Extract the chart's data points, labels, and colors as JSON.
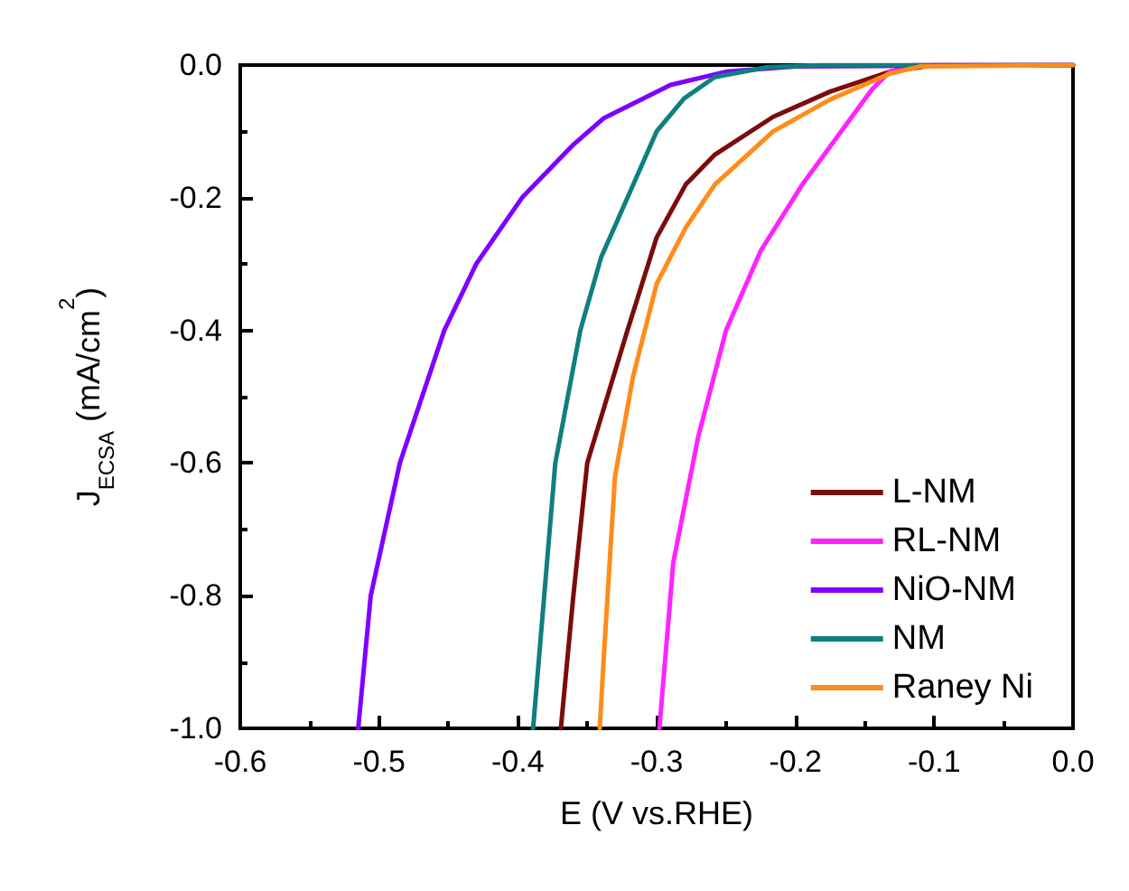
{
  "chart_data": {
    "type": "line",
    "xlabel": "E (V vs.RHE)",
    "ylabel": "J$_{ECSA}$ (mA/cm$^{2}$)",
    "xlim": [
      -0.6,
      0
    ],
    "ylim": [
      -1,
      0
    ],
    "xticks": [
      -0.6,
      -0.5,
      -0.4,
      -0.3,
      -0.2,
      -0.1,
      {
        "value": 0,
        "label": "0.0"
      }
    ],
    "yticks": [
      {
        "value": -1,
        "label": "-1.0"
      },
      -0.8,
      -0.6,
      -0.4,
      -0.2,
      {
        "value": 0,
        "label": "0.0"
      }
    ],
    "grid": false,
    "legend": "bottom right",
    "marker": "none",
    "line_style": "solid",
    "series": [
      {
        "name": "L-NM",
        "color": "#7b0c0c",
        "x": [
          -0.369,
          -0.36,
          -0.35,
          -0.321,
          -0.3,
          -0.279,
          -0.258,
          -0.216,
          -0.175,
          -0.132,
          -0.1,
          0
        ],
        "values": [
          -1,
          -0.8,
          -0.6,
          -0.4,
          -0.26,
          -0.18,
          -0.135,
          -0.078,
          -0.04,
          -0.01,
          0,
          0
        ]
      },
      {
        "name": "RL-NM",
        "color": "#ff22ff",
        "x": [
          -0.298,
          -0.288,
          -0.27,
          -0.25,
          -0.225,
          -0.195,
          -0.166,
          -0.145,
          -0.132,
          -0.115,
          0
        ],
        "values": [
          -1,
          -0.75,
          -0.56,
          -0.4,
          -0.28,
          -0.18,
          -0.097,
          -0.037,
          -0.01,
          0,
          0
        ]
      },
      {
        "name": "NiO-NM",
        "color": "#7f00ff",
        "x": [
          -0.515,
          -0.506,
          -0.485,
          -0.453,
          -0.43,
          -0.397,
          -0.36,
          -0.338,
          -0.29,
          -0.25,
          -0.2,
          0
        ],
        "values": [
          -1,
          -0.8,
          -0.6,
          -0.4,
          -0.3,
          -0.2,
          -0.12,
          -0.08,
          -0.03,
          -0.01,
          -0.002,
          0
        ]
      },
      {
        "name": "NM",
        "color": "#0f7f7f",
        "x": [
          -0.389,
          -0.381,
          -0.373,
          -0.355,
          -0.34,
          -0.321,
          -0.3,
          -0.28,
          -0.258,
          -0.22,
          -0.18,
          0
        ],
        "values": [
          -1,
          -0.8,
          -0.6,
          -0.4,
          -0.29,
          -0.2,
          -0.1,
          -0.05,
          -0.018,
          -0.003,
          0,
          0
        ]
      },
      {
        "name": "Raney Ni",
        "color": "#ff8c1a",
        "x": [
          -0.341,
          -0.338,
          -0.33,
          -0.317,
          -0.3,
          -0.279,
          -0.258,
          -0.216,
          -0.175,
          -0.132,
          -0.11,
          0
        ],
        "values": [
          -1,
          -0.89,
          -0.62,
          -0.47,
          -0.33,
          -0.245,
          -0.18,
          -0.1,
          -0.052,
          -0.013,
          -0.002,
          0
        ]
      }
    ]
  }
}
